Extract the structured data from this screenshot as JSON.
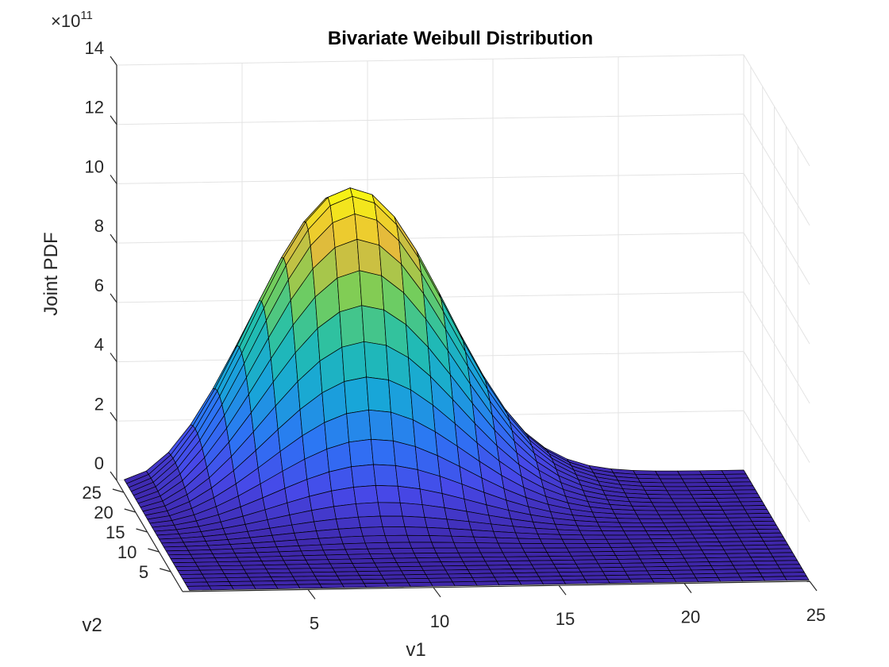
{
  "chart_data": {
    "type": "surface",
    "title": "Bivariate Weibull Distribution",
    "xlabel": "v1",
    "ylabel": "v2",
    "zlabel": "Joint PDF",
    "exponent_label": "×10",
    "exponent_power": "11",
    "z_scale": 100000000000.0,
    "xlim": [
      0,
      25
    ],
    "ylim": [
      0,
      28
    ],
    "zlim": [
      0,
      14
    ],
    "x_ticks": [
      "5",
      "10",
      "15",
      "20",
      "25"
    ],
    "y_ticks": [
      "5",
      "10",
      "15",
      "20",
      "25"
    ],
    "z_ticks": [
      "0",
      "2",
      "4",
      "6",
      "8",
      "10",
      "12",
      "14"
    ],
    "grid": true,
    "colormap": "parula",
    "edge_color": "#000000",
    "peak": {
      "v1": 10,
      "v2": 26,
      "value": 10.0
    },
    "grid_resolution": 28
  }
}
